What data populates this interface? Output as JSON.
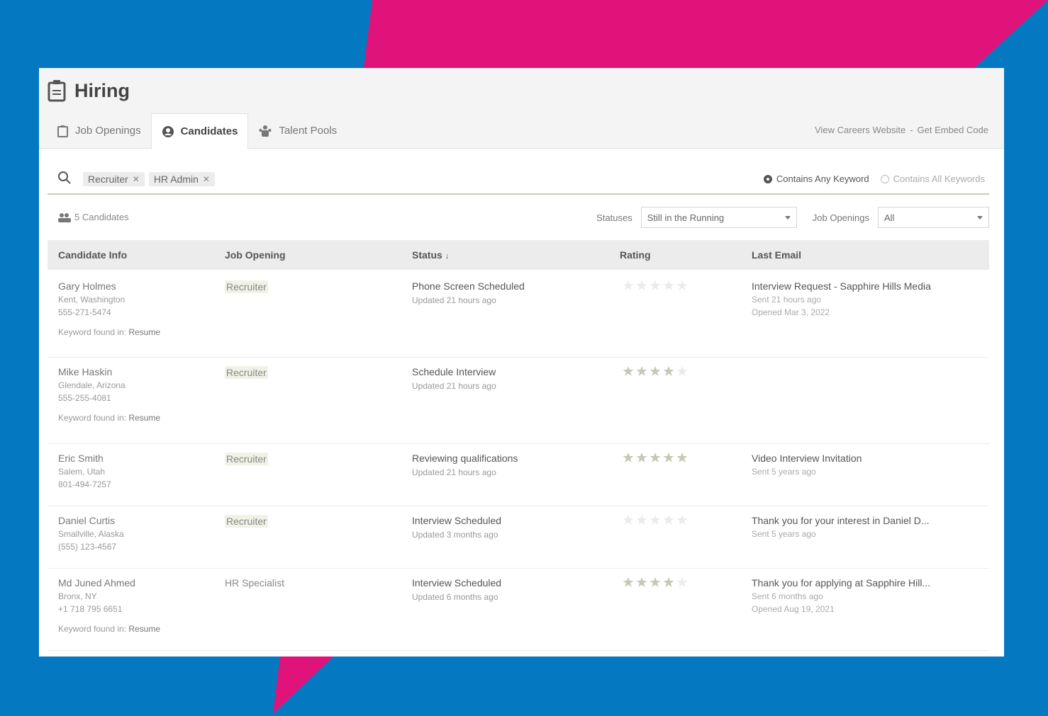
{
  "colors": {
    "blue": "#0479c2",
    "magenta": "#e0137a",
    "star_on": "#c5c9b6",
    "star_off": "#ebebeb"
  },
  "app": {
    "title": "Hiring",
    "icon": "clipboard-icon"
  },
  "tabs": [
    {
      "label": "Job Openings",
      "icon": "clipboard-icon",
      "active": false
    },
    {
      "label": "Candidates",
      "icon": "user-circle-icon",
      "active": true
    },
    {
      "label": "Talent Pools",
      "icon": "people-icon",
      "active": false
    }
  ],
  "links": {
    "careers": "View Careers Website",
    "separator": "-",
    "embed": "Get Embed Code"
  },
  "search": {
    "chips": [
      {
        "label": "Recruiter"
      },
      {
        "label": "HR Admin"
      }
    ],
    "options": {
      "any": "Contains Any Keyword",
      "all": "Contains All Keywords",
      "selected": "any"
    }
  },
  "count": {
    "text": "5 Candidates"
  },
  "filters": {
    "statuses_label": "Statuses",
    "statuses_value": "Still in the Running",
    "openings_label": "Job Openings",
    "openings_value": "All"
  },
  "table": {
    "headers": {
      "info": "Candidate Info",
      "job": "Job Opening",
      "status": "Status",
      "status_sort": "↓",
      "rating": "Rating",
      "email": "Last Email"
    },
    "rows": [
      {
        "name": "Gary Holmes",
        "location": "Kent, Washington",
        "phone": "555-271-5474",
        "keyword_label": "Keyword found in:",
        "keyword_value": "Resume",
        "job": "Recruiter",
        "job_highlight": true,
        "status": "Phone Screen Scheduled",
        "status_updated": "Updated 21 hours ago",
        "rating": 0,
        "email_subject": "Interview Request - Sapphire Hills Media",
        "email_sent": "Sent 21 hours ago",
        "email_opened": "Opened Mar 3, 2022"
      },
      {
        "name": "Mike Haskin",
        "location": "Glendale, Arizona",
        "phone": "555-255-4081",
        "keyword_label": "Keyword found in:",
        "keyword_value": "Resume",
        "job": "Recruiter",
        "job_highlight": true,
        "status": "Schedule Interview",
        "status_updated": "Updated 21 hours ago",
        "rating": 4,
        "email_subject": "",
        "email_sent": "",
        "email_opened": ""
      },
      {
        "name": "Eric Smith",
        "location": "Salem, Utah",
        "phone": "801-494-7257",
        "keyword_label": "",
        "keyword_value": "",
        "job": "Recruiter",
        "job_highlight": true,
        "status": "Reviewing qualifications",
        "status_updated": "Updated 21 hours ago",
        "rating": 5,
        "email_subject": "Video Interview Invitation",
        "email_sent": "Sent 5 years ago",
        "email_opened": ""
      },
      {
        "name": "Daniel Curtis",
        "location": "Smallville, Alaska",
        "phone": "(555) 123-4567",
        "keyword_label": "",
        "keyword_value": "",
        "job": "Recruiter",
        "job_highlight": true,
        "status": "Interview Scheduled",
        "status_updated": "Updated 3 months ago",
        "rating": 0,
        "email_subject": "Thank you for your interest in Daniel D...",
        "email_sent": "Sent 5 years ago",
        "email_opened": ""
      },
      {
        "name": "Md Juned Ahmed",
        "location": "Bronx, NY",
        "phone": "+1 718 795 6651",
        "keyword_label": "Keyword found in:",
        "keyword_value": "Resume",
        "job": "HR Specialist",
        "job_highlight": false,
        "status": "Interview Scheduled",
        "status_updated": "Updated 6 months ago",
        "rating": 4,
        "email_subject": "Thank you for applying at Sapphire Hill...",
        "email_sent": "Sent 6 months ago",
        "email_opened": "Opened Aug 19, 2021"
      }
    ]
  }
}
